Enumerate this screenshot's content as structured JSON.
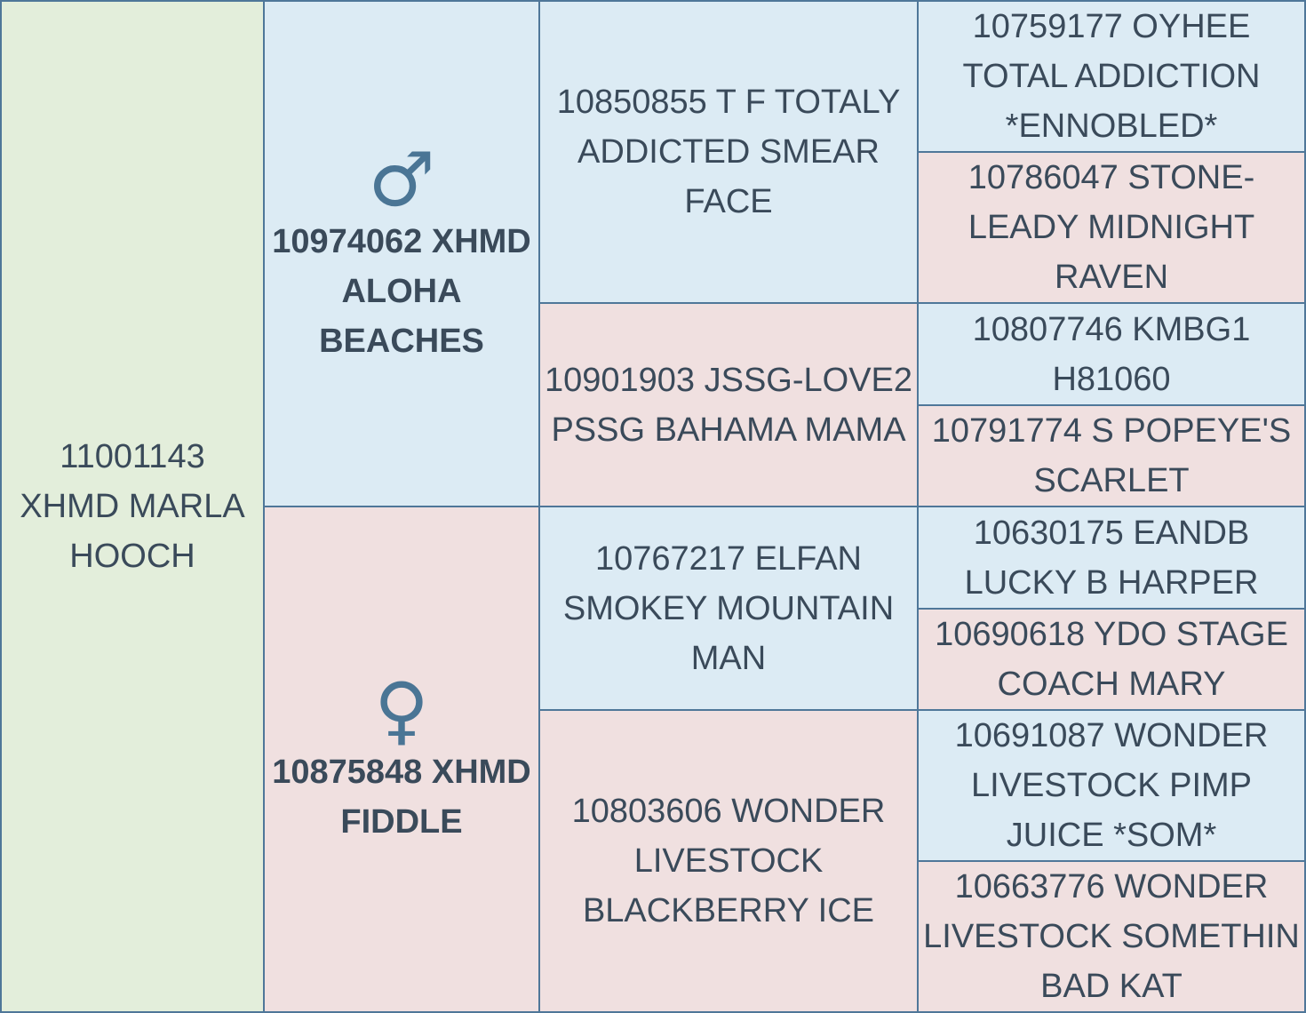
{
  "subject": {
    "name": "11001143 XHMD MARLA HOOCH"
  },
  "sire": {
    "symbol": "♂",
    "name": "10974062 XHMD ALOHA BEACHES"
  },
  "dam": {
    "symbol": "♀",
    "name": "10875848 XHMD FIDDLE"
  },
  "grandparents": [
    {
      "name": "10850855 T F TOTALY ADDICTED SMEAR FACE",
      "sex": "male"
    },
    {
      "name": "10901903 JSSG-LOVE2 PSSG BAHAMA MAMA",
      "sex": "female"
    },
    {
      "name": "10767217 ELFAN SMOKEY MOUNTAIN MAN",
      "sex": "male"
    },
    {
      "name": "10803606 WONDER LIVESTOCK BLACKBERRY ICE",
      "sex": "female"
    }
  ],
  "great_grandparents": [
    {
      "name": "10759177 OYHEE TOTAL ADDICTION *ENNOBLED*",
      "sex": "male"
    },
    {
      "name": "10786047 STONE-LEADY MIDNIGHT RAVEN",
      "sex": "female"
    },
    {
      "name": "10807746 KMBG1 H81060",
      "sex": "male"
    },
    {
      "name": "10791774 S POPEYE'S SCARLET",
      "sex": "female"
    },
    {
      "name": "10630175 EANDB LUCKY B HARPER",
      "sex": "male"
    },
    {
      "name": "10690618 YDO STAGE COACH MARY",
      "sex": "female"
    },
    {
      "name": "10691087 WONDER LIVESTOCK PIMP JUICE *SOM*",
      "sex": "male"
    },
    {
      "name": "10663776 WONDER LIVESTOCK SOMETHIN BAD KAT",
      "sex": "female"
    }
  ],
  "colors": {
    "subject_bg": "#e3eedb",
    "male_bg": "#dcebf4",
    "female_bg": "#f0e0e0",
    "border": "#4f7799",
    "text": "#3a4a5a",
    "symbol": "#4a7595"
  }
}
